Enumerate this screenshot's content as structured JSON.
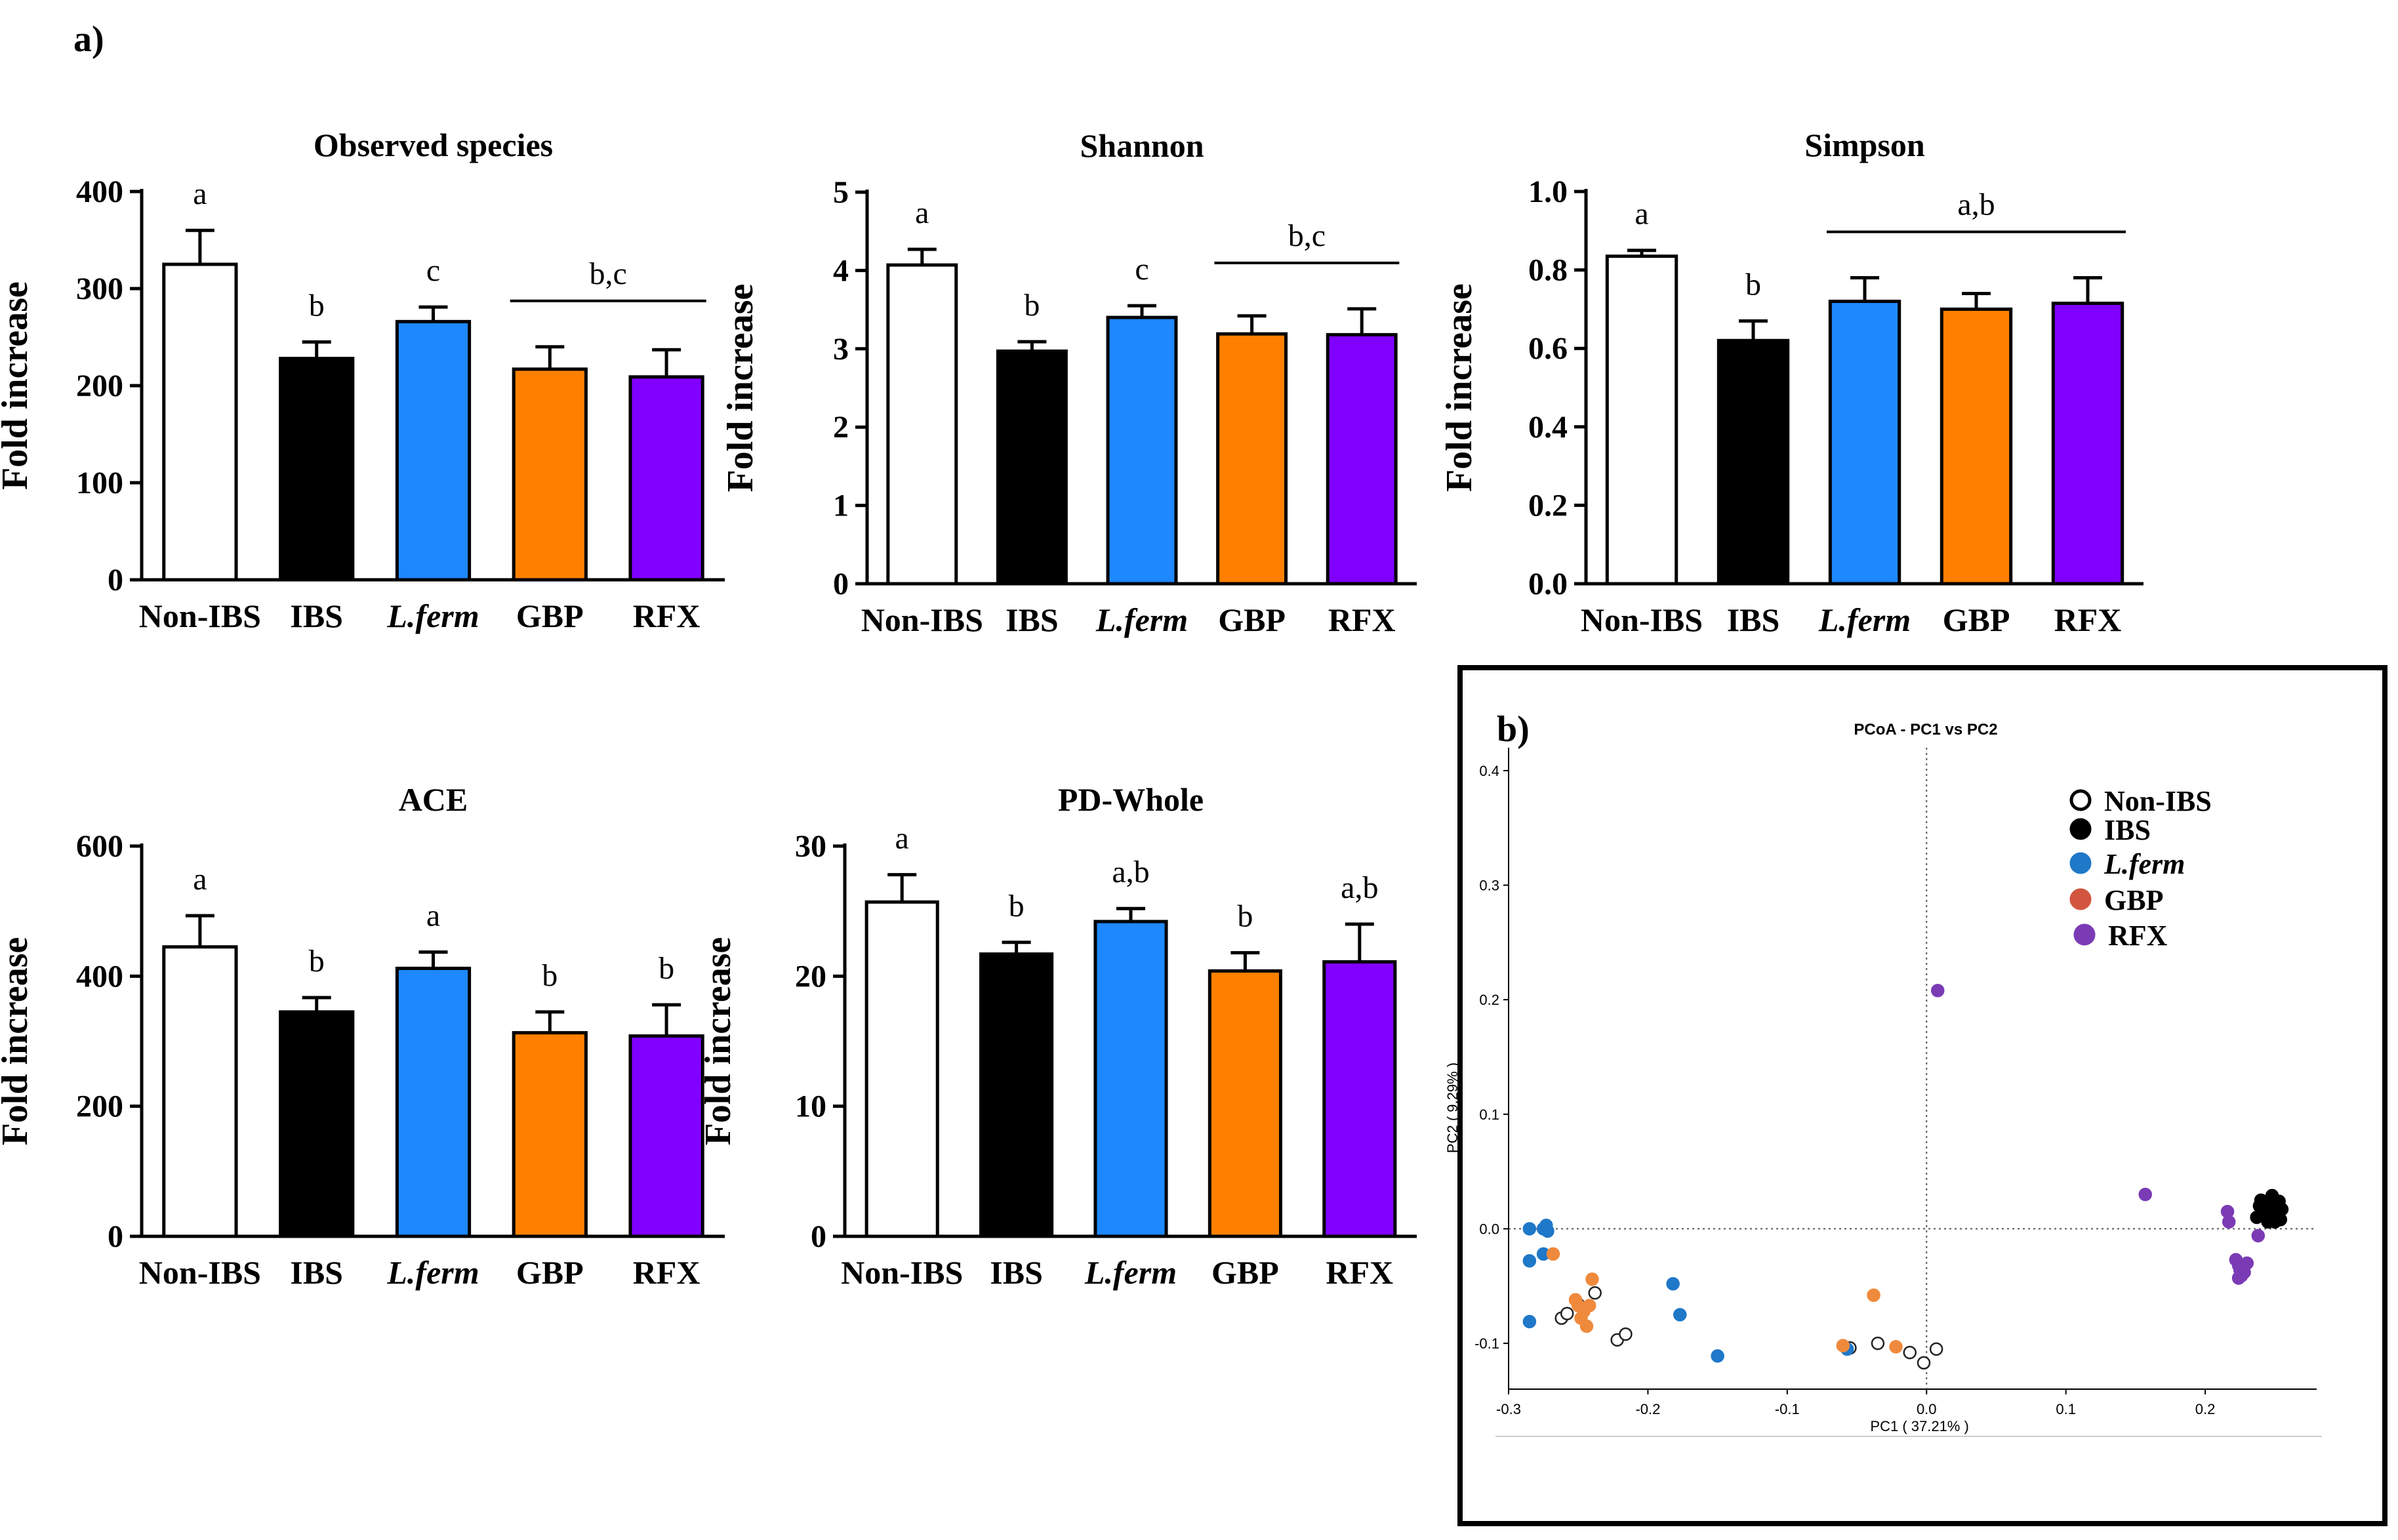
{
  "panel_a_label": "a)",
  "panel_b_label": "b)",
  "colors": {
    "nonibs": "#ffffff",
    "ibs": "#000000",
    "lferm": "#1e88ff",
    "gbp": "#ff8000",
    "rfx": "#8000ff",
    "pcoa_lferm": "#1f78c8",
    "pcoa_gbp": "#ef8a3c",
    "pcoa_rfx": "#7a3bb5",
    "legend_gbp": "#d2553f",
    "legend_rfx": "#7a3bb5"
  },
  "chart_data": [
    {
      "type": "bar",
      "title": "Observed species",
      "ylabel": "Fold increase",
      "categories": [
        "Non-IBS",
        "IBS",
        "L.ferm",
        "GBP",
        "RFX"
      ],
      "values": [
        325,
        228,
        266,
        217,
        209
      ],
      "errors": [
        35,
        17,
        15,
        23,
        28
      ],
      "letters": [
        "a",
        "b",
        "c",
        "",
        ""
      ],
      "group_line": {
        "from": 3,
        "to": 4,
        "label": "b,c"
      },
      "ylim": [
        0,
        400
      ],
      "yticks": [
        0,
        100,
        200,
        300,
        400
      ],
      "ytick_labels": [
        "0",
        "100",
        "200",
        "300",
        "400"
      ]
    },
    {
      "type": "bar",
      "title": "Shannon",
      "ylabel": "Fold increase",
      "categories": [
        "Non-IBS",
        "IBS",
        "L.ferm",
        "GBP",
        "RFX"
      ],
      "values": [
        4.07,
        2.97,
        3.4,
        3.19,
        3.18
      ],
      "errors": [
        0.2,
        0.12,
        0.15,
        0.23,
        0.33
      ],
      "letters": [
        "a",
        "b",
        "c",
        "",
        ""
      ],
      "group_line": {
        "from": 3,
        "to": 4,
        "label": "b,c"
      },
      "ylim": [
        0,
        5
      ],
      "yticks": [
        0,
        1,
        2,
        3,
        4,
        5
      ],
      "ytick_labels": [
        "0",
        "1",
        "2",
        "3",
        "4",
        "5"
      ]
    },
    {
      "type": "bar",
      "title": "Simpson",
      "ylabel": "Fold increase",
      "categories": [
        "Non-IBS",
        "IBS",
        "L.ferm",
        "GBP",
        "RFX"
      ],
      "values": [
        0.835,
        0.62,
        0.72,
        0.7,
        0.715
      ],
      "errors": [
        0.015,
        0.05,
        0.06,
        0.04,
        0.065
      ],
      "letters": [
        "a",
        "b",
        "",
        "",
        ""
      ],
      "group_line": {
        "from": 2,
        "to": 4,
        "label": "a,b"
      },
      "ylim": [
        0,
        1.0
      ],
      "yticks": [
        0,
        0.2,
        0.4,
        0.6,
        0.8,
        1.0
      ],
      "ytick_labels": [
        "0.0",
        "0.2",
        "0.4",
        "0.6",
        "0.8",
        "1.0"
      ]
    },
    {
      "type": "bar",
      "title": "ACE",
      "ylabel": "Fold increase",
      "categories": [
        "Non-IBS",
        "IBS",
        "L.ferm",
        "GBP",
        "RFX"
      ],
      "values": [
        445,
        345,
        412,
        313,
        308
      ],
      "errors": [
        48,
        22,
        25,
        32,
        48
      ],
      "letters": [
        "a",
        "b",
        "a",
        "b",
        "b"
      ],
      "ylim": [
        0,
        600
      ],
      "yticks": [
        0,
        200,
        400,
        600
      ],
      "ytick_labels": [
        "0",
        "200",
        "400",
        "600"
      ]
    },
    {
      "type": "bar",
      "title": "PD-Whole",
      "ylabel": "Fold increase",
      "categories": [
        "Non-IBS",
        "IBS",
        "L.ferm",
        "GBP",
        "RFX"
      ],
      "values": [
        25.7,
        21.7,
        24.2,
        20.4,
        21.1
      ],
      "errors": [
        2.1,
        0.9,
        1.0,
        1.4,
        2.9
      ],
      "letters": [
        "a",
        "b",
        "a,b",
        "b",
        "a,b"
      ],
      "ylim": [
        0,
        30
      ],
      "yticks": [
        0,
        10,
        20,
        30
      ],
      "ytick_labels": [
        "0",
        "10",
        "20",
        "30"
      ]
    },
    {
      "type": "scatter",
      "title": "PCoA - PC1 vs PC2",
      "xlabel": "PC1 ( 37.21% )",
      "ylabel": "PC2 ( 9.29% )",
      "xlim": [
        -0.3,
        0.28
      ],
      "ylim": [
        -0.14,
        0.42
      ],
      "xticks": [
        -0.3,
        -0.2,
        -0.1,
        0.0,
        0.1,
        0.2
      ],
      "xtick_labels": [
        "-0.3",
        "-0.2",
        "-0.1",
        "0.0",
        "0.1",
        "0.2"
      ],
      "yticks": [
        -0.1,
        0.0,
        0.1,
        0.2,
        0.3,
        0.4
      ],
      "ytick_labels": [
        "-0.1",
        "0.0",
        "0.1",
        "0.2",
        "0.3",
        "0.4"
      ],
      "legend": [
        "Non-IBS",
        "IBS",
        "L.ferm",
        "GBP",
        "RFX"
      ],
      "series": [
        {
          "name": "Non-IBS",
          "points": [
            [
              -0.262,
              -0.078
            ],
            [
              -0.258,
              -0.074
            ],
            [
              -0.25,
              -0.066
            ],
            [
              -0.238,
              -0.056
            ],
            [
              -0.222,
              -0.097
            ],
            [
              -0.216,
              -0.092
            ],
            [
              -0.035,
              -0.1
            ],
            [
              -0.012,
              -0.108
            ],
            [
              -0.002,
              -0.117
            ],
            [
              0.007,
              -0.105
            ],
            [
              -0.055,
              -0.104
            ]
          ]
        },
        {
          "name": "IBS",
          "points": [
            [
              0.237,
              0.01
            ],
            [
              0.239,
              0.02
            ],
            [
              0.24,
              0.025
            ],
            [
              0.242,
              0.013
            ],
            [
              0.244,
              0.017
            ],
            [
              0.245,
              0.006
            ],
            [
              0.246,
              0.022
            ],
            [
              0.247,
              0.018
            ],
            [
              0.248,
              0.012
            ],
            [
              0.248,
              0.029
            ],
            [
              0.249,
              0.016
            ],
            [
              0.25,
              0.006
            ],
            [
              0.251,
              0.02
            ],
            [
              0.252,
              0.013
            ],
            [
              0.253,
              0.024
            ],
            [
              0.254,
              0.008
            ],
            [
              0.255,
              0.017
            ]
          ]
        },
        {
          "name": "L.ferm",
          "points": [
            [
              -0.285,
              0.0
            ],
            [
              -0.275,
              0.0
            ],
            [
              -0.273,
              0.003
            ],
            [
              -0.272,
              -0.002
            ],
            [
              -0.285,
              -0.028
            ],
            [
              -0.275,
              -0.022
            ],
            [
              -0.285,
              -0.081
            ],
            [
              -0.182,
              -0.048
            ],
            [
              -0.177,
              -0.075
            ],
            [
              -0.15,
              -0.111
            ],
            [
              -0.057,
              -0.105
            ]
          ]
        },
        {
          "name": "GBP",
          "points": [
            [
              -0.268,
              -0.022
            ],
            [
              -0.24,
              -0.044
            ],
            [
              -0.252,
              -0.062
            ],
            [
              -0.25,
              -0.067
            ],
            [
              -0.246,
              -0.072
            ],
            [
              -0.242,
              -0.067
            ],
            [
              -0.248,
              -0.078
            ],
            [
              -0.244,
              -0.085
            ],
            [
              -0.038,
              -0.058
            ],
            [
              -0.06,
              -0.102
            ],
            [
              -0.022,
              -0.103
            ]
          ]
        },
        {
          "name": "RFX",
          "points": [
            [
              0.008,
              0.208
            ],
            [
              0.157,
              0.03
            ],
            [
              0.216,
              0.015
            ],
            [
              0.217,
              0.006
            ],
            [
              0.222,
              -0.027
            ],
            [
              0.224,
              -0.032
            ],
            [
              0.225,
              -0.036
            ],
            [
              0.228,
              -0.038
            ],
            [
              0.226,
              -0.041
            ],
            [
              0.224,
              -0.043
            ],
            [
              0.23,
              -0.03
            ],
            [
              0.238,
              -0.006
            ]
          ]
        }
      ]
    }
  ]
}
